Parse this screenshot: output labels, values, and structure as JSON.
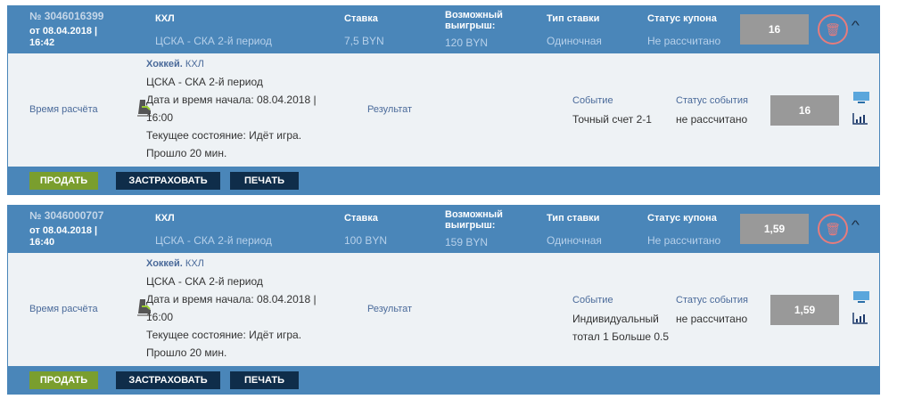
{
  "labels": {
    "league": "КХЛ",
    "stake": "Ставка",
    "possible_win": "Возможный выигрыш:",
    "bet_type": "Тип ставки",
    "coupon_status": "Статус купона",
    "settle_time": "Время расчёта",
    "result": "Результат",
    "event": "Событие",
    "event_status": "Статус события",
    "sell": "ПРОДАТЬ",
    "insure": "ЗАСТРАХОВАТЬ",
    "print": "ПЕЧАТЬ"
  },
  "colors": {
    "header": "#4a86b9",
    "sell": "#7a9e2e",
    "dark_button": "#0f2d4a",
    "delete": "#e77c7c"
  },
  "coupons": [
    {
      "number": "№ 3046016399",
      "date": "от 08.04.2018 | 16:42",
      "match": "ЦСКА - СКА 2-й период",
      "stake": "7,5 BYN",
      "win": "120 BYN",
      "type": "Одиночная",
      "status": "Не рассчитано",
      "odds": "16",
      "detail": {
        "sport": "Хоккей.",
        "league": "КХЛ",
        "match": "ЦСКА - СКА 2-й период",
        "start": "Дата и время начала: 08.04.2018 | 16:00",
        "state": "Текущее состояние: Идёт игра.",
        "elapsed": "Прошло 20 мин.",
        "event": "Точный счет 2-1",
        "event_status": "не рассчитано",
        "odds": "16"
      }
    },
    {
      "number": "№ 3046000707",
      "date": "от 08.04.2018 | 16:40",
      "match": "ЦСКА - СКА 2-й период",
      "stake": "100 BYN",
      "win": "159 BYN",
      "type": "Одиночная",
      "status": "Не рассчитано",
      "odds": "1,59",
      "detail": {
        "sport": "Хоккей.",
        "league": "КХЛ",
        "match": "ЦСКА - СКА 2-й период",
        "start": "Дата и время начала: 08.04.2018 | 16:00",
        "state": "Текущее состояние: Идёт игра.",
        "elapsed": "Прошло 20 мин.",
        "event": "Индивидуальный тотал 1 Больше 0.5",
        "event_status": "не рассчитано",
        "odds": "1,59"
      }
    }
  ]
}
